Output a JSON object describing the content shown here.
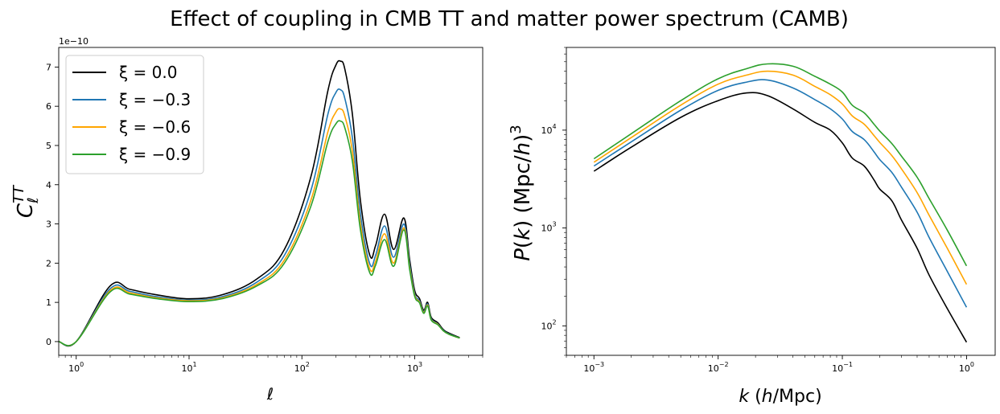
{
  "figure": {
    "title": "Effect of coupling in CMB TT and matter power spectrum (CAMB)"
  },
  "colors": {
    "xi_0": "#000000",
    "xi_m03": "#1f77b4",
    "xi_m06": "#ffa500",
    "xi_m09": "#2ca02c"
  },
  "chart_data": [
    {
      "type": "line",
      "xlabel": "ℓ",
      "ylabel": "C_ℓ^TT",
      "y_offset_label": "1e−10",
      "xscale": "log",
      "yscale": "linear",
      "xlim": [
        0.7,
        4000
      ],
      "ylim": [
        -0.35,
        7.5
      ],
      "y_unit": "1e-10",
      "x_ticks": [
        {
          "v": 1,
          "e": "0"
        },
        {
          "v": 10,
          "e": "1"
        },
        {
          "v": 100,
          "e": "2"
        },
        {
          "v": 1000,
          "e": "3"
        }
      ],
      "y_ticks": [
        0,
        1,
        2,
        3,
        4,
        5,
        6,
        7
      ],
      "legend": "upper left",
      "x": [
        0.7,
        1,
        2,
        3,
        5,
        10,
        20,
        40,
        70,
        120,
        170,
        200,
        220,
        240,
        280,
        330,
        400,
        450,
        540,
        650,
        800,
        900,
        1000,
        1100,
        1200,
        1300,
        1400,
        1600,
        1800,
        2000,
        2500
      ],
      "series": [
        {
          "name": "ξ = 0.0",
          "color_key": "xi_0",
          "values": [
            0,
            0,
            1.42,
            1.33,
            1.2,
            1.09,
            1.2,
            1.6,
            2.35,
            4.2,
            6.4,
            7.05,
            7.15,
            6.95,
            5.8,
            3.6,
            2.2,
            2.45,
            3.25,
            2.35,
            3.15,
            2.1,
            1.3,
            1.1,
            0.8,
            1.0,
            0.62,
            0.48,
            0.3,
            0.22,
            0.1
          ]
        },
        {
          "name": "ξ = −0.3",
          "color_key": "xi_m03",
          "values": [
            0,
            0,
            1.35,
            1.28,
            1.15,
            1.06,
            1.15,
            1.52,
            2.2,
            3.85,
            5.8,
            6.35,
            6.42,
            6.2,
            5.2,
            3.25,
            1.98,
            2.2,
            2.95,
            2.15,
            3.0,
            1.98,
            1.22,
            1.04,
            0.76,
            0.96,
            0.58,
            0.45,
            0.28,
            0.2,
            0.09
          ]
        },
        {
          "name": "ξ = −0.6",
          "color_key": "xi_m06",
          "values": [
            0,
            0,
            1.3,
            1.24,
            1.12,
            1.04,
            1.12,
            1.46,
            2.08,
            3.6,
            5.35,
            5.85,
            5.93,
            5.75,
            4.85,
            3.0,
            1.85,
            2.05,
            2.75,
            2.0,
            2.9,
            1.9,
            1.18,
            1.01,
            0.74,
            0.93,
            0.56,
            0.44,
            0.27,
            0.19,
            0.09
          ]
        },
        {
          "name": "ξ = −0.9",
          "color_key": "xi_m09",
          "values": [
            0,
            0,
            1.27,
            1.21,
            1.1,
            1.02,
            1.1,
            1.42,
            2.0,
            3.45,
            5.1,
            5.55,
            5.62,
            5.45,
            4.6,
            2.85,
            1.75,
            1.95,
            2.6,
            1.92,
            2.85,
            1.85,
            1.15,
            0.99,
            0.72,
            0.91,
            0.55,
            0.43,
            0.27,
            0.19,
            0.09
          ]
        }
      ]
    },
    {
      "type": "line",
      "xlabel": "k  (h/Mpc)",
      "ylabel": "P(k)  (Mpc/h)^3",
      "xscale": "log",
      "yscale": "log",
      "xlim": [
        0.0006,
        1.7
      ],
      "ylim": [
        50,
        70000
      ],
      "x_ticks": [
        {
          "v": 0.001,
          "e": "−3"
        },
        {
          "v": 0.01,
          "e": "−2"
        },
        {
          "v": 0.1,
          "e": "−1"
        },
        {
          "v": 1,
          "e": "0"
        }
      ],
      "y_ticks": [
        {
          "v": 100,
          "e": "2"
        },
        {
          "v": 1000,
          "e": "3"
        },
        {
          "v": 10000,
          "e": "4"
        }
      ],
      "x": [
        0.001,
        0.002,
        0.005,
        0.01,
        0.017,
        0.025,
        0.04,
        0.06,
        0.08,
        0.1,
        0.12,
        0.15,
        0.18,
        0.2,
        0.25,
        0.3,
        0.4,
        0.5,
        0.7,
        1.0
      ],
      "series": [
        {
          "name": "ξ = 0.0",
          "color_key": "xi_0",
          "values": [
            3800,
            6700,
            13500,
            20000,
            24000,
            22500,
            16500,
            12000,
            10000,
            7400,
            5200,
            4300,
            3100,
            2500,
            1900,
            1200,
            620,
            330,
            150,
            68
          ]
        },
        {
          "name": "ξ = −0.3",
          "color_key": "xi_m03",
          "values": [
            4300,
            7600,
            16000,
            25500,
            31000,
            32500,
            27000,
            20500,
            16500,
            13000,
            9700,
            8000,
            6000,
            5000,
            3700,
            2600,
            1450,
            800,
            360,
            155
          ]
        },
        {
          "name": "ξ = −0.6",
          "color_key": "xi_m06",
          "values": [
            4700,
            8400,
            18000,
            29500,
            36500,
            40000,
            36500,
            28000,
            23000,
            18500,
            14000,
            11500,
            8800,
            7500,
            5500,
            4000,
            2300,
            1350,
            620,
            265
          ]
        },
        {
          "name": "ξ = −0.9",
          "color_key": "xi_m09",
          "values": [
            5100,
            9200,
            20000,
            33500,
            42500,
            47500,
            45000,
            35500,
            29500,
            24500,
            18000,
            15000,
            11500,
            9800,
            7300,
            5400,
            3300,
            2000,
            950,
            410
          ]
        }
      ]
    }
  ]
}
